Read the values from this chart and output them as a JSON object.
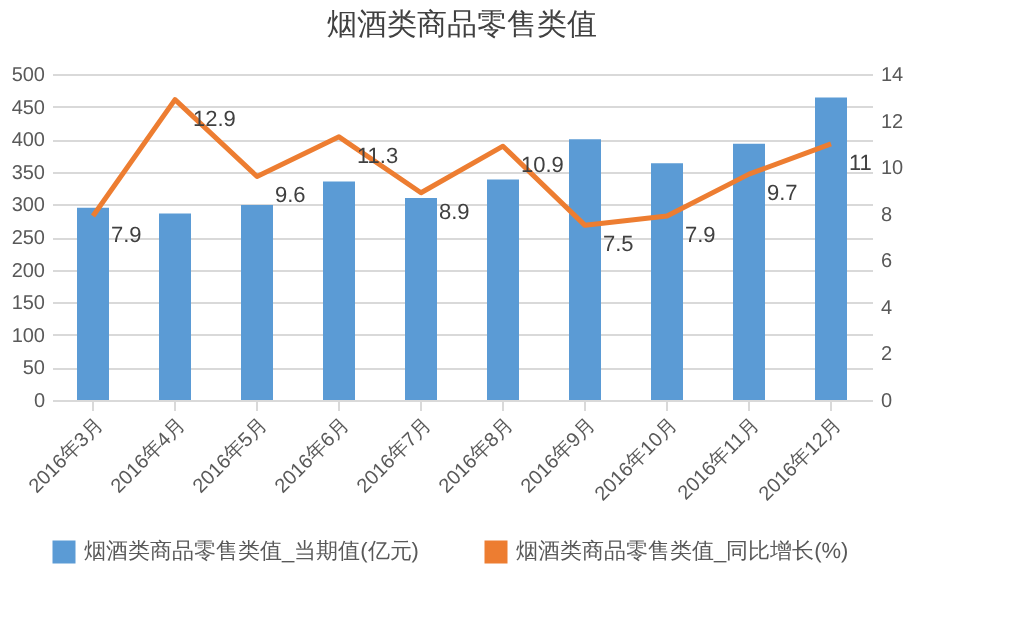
{
  "chart_data": {
    "type": "bar",
    "title": "烟酒类商品零售类值",
    "categories": [
      "2016年3月",
      "2016年4月",
      "2016年5月",
      "2016年6月",
      "2016年7月",
      "2016年8月",
      "2016年9月",
      "2016年10月",
      "2016年11月",
      "2016年12月"
    ],
    "series": [
      {
        "name": "烟酒类商品零售类值_当期值(亿元)",
        "color": "#5b9bd5",
        "values": [
          295,
          286,
          299,
          335,
          310,
          338,
          400,
          363,
          393,
          464
        ]
      },
      {
        "name": "烟酒类商品零售类值_同比增长(%)",
        "type": "line",
        "axis": "y2",
        "color": "#ed7d31",
        "values": [
          7.9,
          12.9,
          9.6,
          11.3,
          8.9,
          10.9,
          7.5,
          7.9,
          9.7,
          11
        ],
        "value_labels": [
          "7.9",
          "12.9",
          "9.6",
          "11.3",
          "8.9",
          "10.9",
          "7.5",
          "7.9",
          "9.7",
          "11"
        ]
      }
    ],
    "ylim": [
      0,
      500
    ],
    "yticks": [
      0,
      50,
      100,
      150,
      200,
      250,
      300,
      350,
      400,
      450,
      500
    ],
    "y2lim": [
      0,
      14
    ],
    "y2ticks": [
      0,
      2,
      4,
      6,
      8,
      10,
      12,
      14
    ],
    "grid": "y",
    "legend": "bottom",
    "marker": "none",
    "line_style": "solid"
  }
}
